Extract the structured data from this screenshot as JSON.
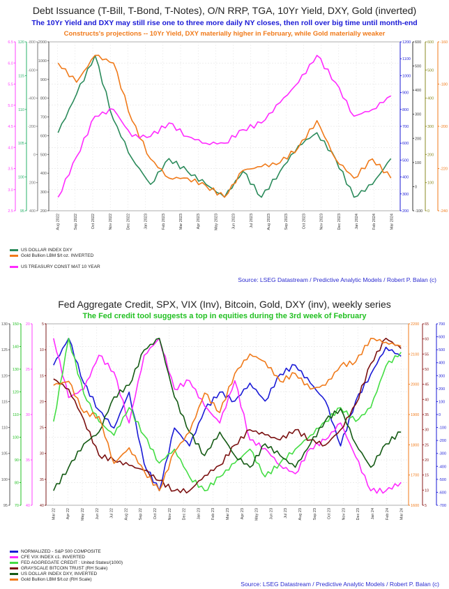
{
  "chart1": {
    "title": "Debt Issuance (T-Bill, T-Bond, T-Notes), O/N RRP, TGA, 10Yr Yield, DXY, Gold (inverted)",
    "subtitle": "The 10Yr Yield and DXY may still rise one to three more daily NY closes, then roll over big time until month-end",
    "subtitle2": "Constructs's projections -- 10Yr Yield, DXY materially higher in February, while Gold materially weaker",
    "source": "Source: LSEG Datastream / Predictive Analytic Models / Robert P. Balan (c)",
    "xticks": [
      "Aug 2022",
      "Sep 2022",
      "Oct 2022",
      "Nov 2022",
      "Dec 2022",
      "Jan 2023",
      "Feb 2023",
      "Mar 2023",
      "Apr 2023",
      "May 2023",
      "Jun 2023",
      "Jul 2023",
      "Aug 2023",
      "Sep 2023",
      "Oct 2023",
      "Nov 2023",
      "Dec 2023",
      "Jan 2024",
      "Feb 2024",
      "Mar 2024"
    ],
    "left_axes": [
      {
        "color": "#ff40ff",
        "ticks": [
          "6.5",
          "6.0",
          "5.5",
          "5.0",
          "4.5",
          "4.0",
          "3.5",
          "3.0",
          "2.5"
        ]
      },
      {
        "color": "#2ab06a",
        "ticks": [
          "120",
          "115",
          "110",
          "105",
          "100",
          "95"
        ]
      },
      {
        "color": "#777777",
        "ticks": [
          "-800",
          "-600",
          "-400",
          "-200",
          "0",
          "200",
          "400"
        ]
      },
      {
        "color": "#555555",
        "ticks": [
          "2000",
          "1000",
          "900",
          "800",
          "700",
          "600",
          "500",
          "400",
          "300",
          "200"
        ]
      }
    ],
    "right_axes": [
      {
        "color": "#1a1ad6",
        "ticks": [
          "1200",
          "1100",
          "1000",
          "900",
          "800",
          "700",
          "600",
          "500",
          "400",
          "300",
          "200"
        ]
      },
      {
        "color": "#333333",
        "ticks": [
          "600",
          "500",
          "400",
          "300",
          "200",
          "100",
          "0",
          "-100"
        ]
      },
      {
        "color": "#8a8a20",
        "ticks": [
          "600",
          "500",
          "400",
          "300",
          "200",
          "100",
          "0"
        ]
      },
      {
        "color": "#f07a1a",
        "ticks": [
          "-160",
          "-180",
          "-200",
          "-220",
          "-240"
        ]
      }
    ],
    "legend": [
      {
        "label": "US DOLLAR INDEX DXY",
        "color": "#2a8a5a"
      },
      {
        "label": "Gold Bullion LBM $/t oz. INVERTED",
        "color": "#f07a1a"
      },
      {
        "label": "",
        "color": ""
      },
      {
        "label": "US TREASURY CONST MAT 10 YEAR",
        "color": "#ff2aff"
      }
    ]
  },
  "chart2": {
    "title": "Fed Aggregate Credit, SPX, VIX (Inv), Bitcoin, Gold, DXY (inv), weekly series",
    "subtitle": "The Fed credit tool suggests a top in equities during the 3rd week of February",
    "source": "Source: LSEG Datastream / Predictive Analytic Models / Robert P. Balan (c)",
    "xticks": [
      "Mar 22",
      "Apr 22",
      "May 22",
      "Jun 22",
      "Jul 22",
      "Aug 22",
      "Sep 22",
      "Oct 22",
      "Nov 22",
      "Dec 22",
      "Jan 23",
      "Feb 23",
      "Mar 23",
      "Apr 23",
      "May 23",
      "Jun 23",
      "Jul 23",
      "Aug 23",
      "Sep 23",
      "Oct 23",
      "Nov 23",
      "Dec 23",
      "Jan 24",
      "Feb 24",
      "Mar 24"
    ],
    "left_axes": [
      {
        "color": "#555555",
        "ticks": [
          "130",
          "125",
          "120",
          "115",
          "110",
          "105",
          "100",
          "95"
        ]
      },
      {
        "color": "#22c022",
        "ticks": [
          "150",
          "140",
          "130",
          "120",
          "110",
          "100",
          "90",
          "80",
          "70"
        ]
      },
      {
        "color": "#ff40ff",
        "ticks": [
          "20",
          "25",
          "30",
          "35",
          "40"
        ]
      },
      {
        "color": "#7a1a1a",
        "ticks": [
          "5",
          "10",
          "15",
          "20",
          "25",
          "30",
          "35",
          "40"
        ]
      }
    ],
    "right_axes": [
      {
        "color": "#f07a1a",
        "ticks": [
          "2200",
          "2100",
          "2000",
          "1900",
          "1800",
          "1700",
          "1600"
        ]
      },
      {
        "color": "#8a1a1a",
        "ticks": [
          "65",
          "60",
          "55",
          "50",
          "45",
          "40",
          "35",
          "30",
          "25",
          "20",
          "15",
          "10",
          "5"
        ]
      },
      {
        "color": "#1a1ad6",
        "ticks": [
          "700",
          "600",
          "500",
          "400",
          "300",
          "200",
          "100",
          "0",
          "-100",
          "-200",
          "-300",
          "-400",
          "-500",
          "-600",
          "-700"
        ]
      }
    ],
    "legend": [
      {
        "label": "NORMALIZED - S&P 500 COMPOSITE",
        "color": "#1a1ad6"
      },
      {
        "label": "CFE VIX INDEX c1. INVERTED",
        "color": "#ff2aff"
      },
      {
        "label": "FED AGGREGATE CREDIT : United States/(1000)",
        "color": "#44dd44"
      },
      {
        "label": "GRAYSCALE BITCOIN TRUST (RH Scale)",
        "color": "#7a1010"
      },
      {
        "label": "US DOLLAR INDEX DXY, INVERTED",
        "color": "#145a14"
      },
      {
        "label": "Gold Bullion LBM $/t.oz (RH Scale)",
        "color": "#f07a1a"
      }
    ]
  },
  "chart_data": [
    {
      "type": "line",
      "title": "Debt Issuance (T-Bill, T-Bond, T-Notes), O/N RRP, TGA, 10Yr Yield, DXY, Gold (inverted)",
      "x": [
        "Aug 2022",
        "Sep 2022",
        "Oct 2022",
        "Nov 2022",
        "Dec 2022",
        "Jan 2023",
        "Feb 2023",
        "Mar 2023",
        "Apr 2023",
        "May 2023",
        "Jun 2023",
        "Jul 2023",
        "Aug 2023",
        "Sep 2023",
        "Oct 2023",
        "Nov 2023",
        "Dec 2023",
        "Jan 2024",
        "Feb 2024"
      ],
      "series": [
        {
          "name": "US DOLLAR INDEX DXY",
          "color": "#2a8a5a",
          "values": [
            106,
            109,
            112,
            107,
            104,
            102,
            104,
            103,
            102,
            101,
            103,
            101,
            103,
            105,
            106,
            104,
            101,
            102,
            104
          ]
        },
        {
          "name": "Gold Bullion LBM $/t oz. INVERTED",
          "color": "#f07a1a",
          "values": [
            -170,
            -175,
            -168,
            -170,
            -185,
            -195,
            -200,
            -200,
            -202,
            -205,
            -198,
            -197,
            -196,
            -192,
            -185,
            -195,
            -200,
            -195,
            -200
          ]
        },
        {
          "name": "US TREASURY CONST MAT 10 YEAR",
          "color": "#ff2aff",
          "values": [
            2.7,
            3.3,
            3.9,
            4.0,
            3.6,
            3.6,
            3.8,
            3.6,
            3.5,
            3.5,
            3.7,
            3.8,
            4.1,
            4.4,
            4.8,
            4.4,
            3.9,
            4.0,
            4.2
          ]
        }
      ]
    },
    {
      "type": "line",
      "title": "Fed Aggregate Credit, SPX, VIX (Inv), Bitcoin, Gold, DXY (inv), weekly series",
      "x": [
        "Mar 22",
        "Apr 22",
        "May 22",
        "Jun 22",
        "Jul 22",
        "Aug 22",
        "Sep 22",
        "Oct 22",
        "Nov 22",
        "Dec 22",
        "Jan 23",
        "Feb 23",
        "Mar 23",
        "Apr 23",
        "May 23",
        "Jun 23",
        "Jul 23",
        "Aug 23",
        "Sep 23",
        "Oct 23",
        "Nov 23",
        "Dec 23",
        "Jan 24",
        "Feb 24"
      ],
      "series": [
        {
          "name": "NORMALIZED - S&P 500 COMPOSITE",
          "color": "#1a1ad6",
          "values": [
            350,
            500,
            250,
            100,
            0,
            200,
            -200,
            -350,
            0,
            -100,
            100,
            200,
            150,
            250,
            150,
            300,
            350,
            250,
            150,
            -100,
            150,
            300,
            450,
            400
          ]
        },
        {
          "name": "CFE VIX INDEX c1. INVERTED",
          "color": "#ff2aff",
          "values": [
            32,
            25,
            26,
            30,
            28,
            22,
            30,
            32,
            26,
            27,
            24,
            22,
            27,
            20,
            19,
            17,
            16,
            19,
            20,
            22,
            18,
            14,
            14,
            15
          ]
        },
        {
          "name": "FED AGGREGATE CREDIT : United States/(1000)",
          "color": "#44dd44",
          "values": [
            120,
            150,
            130,
            120,
            115,
            125,
            115,
            105,
            110,
            100,
            95,
            100,
            105,
            110,
            100,
            105,
            110,
            115,
            120,
            125,
            120,
            125,
            140,
            145
          ]
        },
        {
          "name": "GRAYSCALE BITCOIN TRUST (RH Scale)",
          "color": "#7a1010",
          "values": [
            30,
            28,
            22,
            15,
            14,
            13,
            12,
            10,
            8,
            8,
            11,
            13,
            17,
            20,
            19,
            18,
            20,
            18,
            17,
            20,
            25,
            33,
            38,
            36
          ]
        },
        {
          "name": "US DOLLAR INDEX DXY, INVERTED",
          "color": "#145a14",
          "values": [
            99,
            101,
            103,
            104,
            107,
            108,
            111,
            112,
            107,
            104,
            102,
            104,
            102,
            101,
            103,
            102,
            101,
            103,
            105,
            106,
            103,
            101,
            103,
            104
          ]
        },
        {
          "name": "Gold Bullion LBM $/t.oz (RH Scale)",
          "color": "#f07a1a",
          "values": [
            1920,
            1930,
            1850,
            1840,
            1720,
            1760,
            1700,
            1650,
            1750,
            1800,
            1900,
            1850,
            1950,
            2000,
            1980,
            1930,
            1950,
            1910,
            1920,
            1970,
            1980,
            2040,
            2030,
            2020
          ]
        }
      ]
    }
  ]
}
